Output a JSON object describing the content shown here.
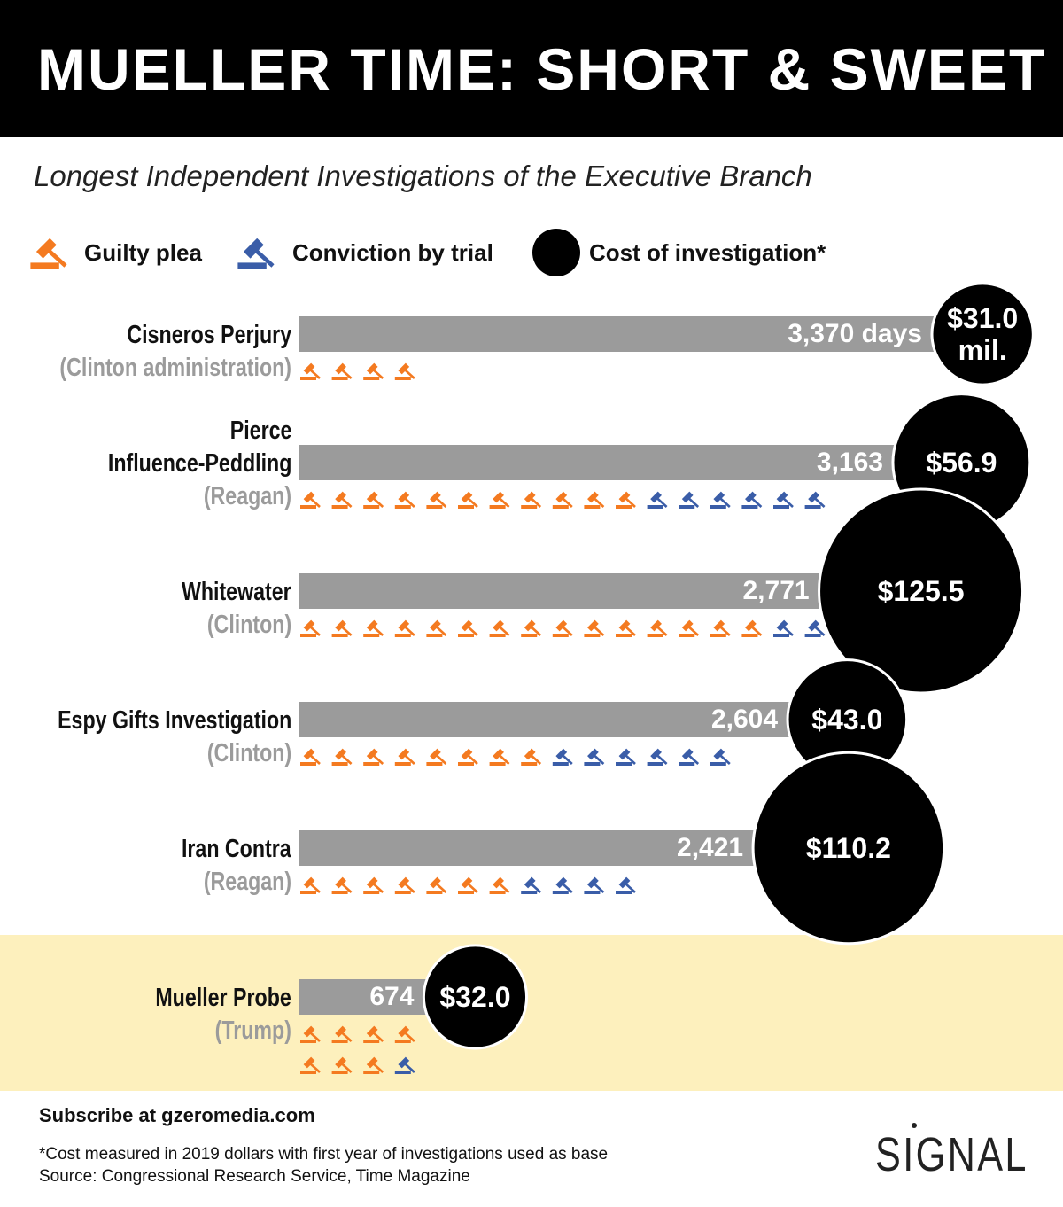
{
  "chart_data": {
    "type": "bar",
    "orientation": "horizontal",
    "title": "MUELLER TIME: SHORT & SWEET",
    "subtitle": "Longest Independent Investigations of the Executive Branch",
    "categories": [
      "Cisneros Perjury",
      "Pierce\nInfluence-Peddling",
      "Whitewater",
      "Espy Gifts Investigation",
      "Iran Contra",
      "Mueller Probe"
    ],
    "administrations": [
      "(Clinton administration)",
      "(Reagan)",
      "(Clinton)",
      "(Clinton)",
      "(Reagan)",
      "(Trump)"
    ],
    "values": [
      3370,
      3163,
      2771,
      2604,
      2421,
      674
    ],
    "value_labels": [
      "3,370 days",
      "3,163",
      "2,771",
      "2,604",
      "2,421",
      "674"
    ],
    "color": "#9b9b9b",
    "cost": {
      "name": "Cost of investigation*",
      "color": "#000000",
      "values": [
        31.0,
        56.9,
        125.5,
        43.0,
        110.2,
        32.0
      ],
      "value_labels": [
        "$31.0 mil.",
        "$56.9",
        "$125.5",
        "$43.0",
        "$110.2",
        "$32.0"
      ]
    },
    "guilty_plea": {
      "name": "Guilty plea",
      "color": "#f47a20",
      "values": [
        4,
        11,
        15,
        8,
        7,
        7
      ]
    },
    "conviction_by_trial": {
      "name": "Conviction by trial",
      "color": "#3a5da8",
      "values": [
        0,
        6,
        3,
        6,
        4,
        1
      ]
    }
  },
  "footer": {
    "subscribe": "Subscribe at gzeromedia.com",
    "note": "*Cost measured in 2019 dollars with first year of investigations used as base",
    "source": "Source: Congressional Research Service, Time Magazine",
    "logo": "SIGNAL"
  }
}
